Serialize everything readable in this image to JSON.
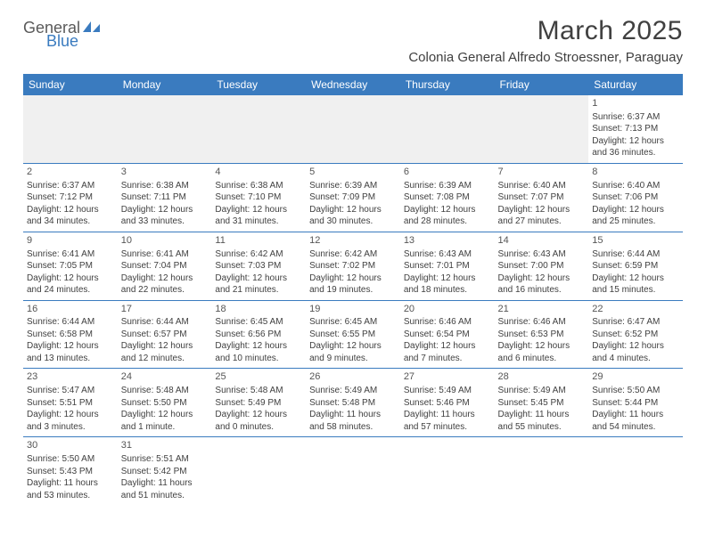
{
  "logo": {
    "text_top": "General",
    "text_bottom": "Blue",
    "shape_color": "#3a7bbf"
  },
  "header": {
    "month_title": "March 2025",
    "location": "Colonia General Alfredo Stroessner, Paraguay"
  },
  "calendar": {
    "day_headers": [
      "Sunday",
      "Monday",
      "Tuesday",
      "Wednesday",
      "Thursday",
      "Friday",
      "Saturday"
    ],
    "header_bg": "#3a7bbf",
    "header_fg": "#ffffff",
    "border_color": "#3a7bbf",
    "blank_bg": "#f0f0f0",
    "text_color": "#404040",
    "font_size_cell": 10,
    "font_size_daynum": 11,
    "weeks": [
      [
        null,
        null,
        null,
        null,
        null,
        null,
        {
          "n": "1",
          "sunrise": "Sunrise: 6:37 AM",
          "sunset": "Sunset: 7:13 PM",
          "daylight": "Daylight: 12 hours and 36 minutes."
        }
      ],
      [
        {
          "n": "2",
          "sunrise": "Sunrise: 6:37 AM",
          "sunset": "Sunset: 7:12 PM",
          "daylight": "Daylight: 12 hours and 34 minutes."
        },
        {
          "n": "3",
          "sunrise": "Sunrise: 6:38 AM",
          "sunset": "Sunset: 7:11 PM",
          "daylight": "Daylight: 12 hours and 33 minutes."
        },
        {
          "n": "4",
          "sunrise": "Sunrise: 6:38 AM",
          "sunset": "Sunset: 7:10 PM",
          "daylight": "Daylight: 12 hours and 31 minutes."
        },
        {
          "n": "5",
          "sunrise": "Sunrise: 6:39 AM",
          "sunset": "Sunset: 7:09 PM",
          "daylight": "Daylight: 12 hours and 30 minutes."
        },
        {
          "n": "6",
          "sunrise": "Sunrise: 6:39 AM",
          "sunset": "Sunset: 7:08 PM",
          "daylight": "Daylight: 12 hours and 28 minutes."
        },
        {
          "n": "7",
          "sunrise": "Sunrise: 6:40 AM",
          "sunset": "Sunset: 7:07 PM",
          "daylight": "Daylight: 12 hours and 27 minutes."
        },
        {
          "n": "8",
          "sunrise": "Sunrise: 6:40 AM",
          "sunset": "Sunset: 7:06 PM",
          "daylight": "Daylight: 12 hours and 25 minutes."
        }
      ],
      [
        {
          "n": "9",
          "sunrise": "Sunrise: 6:41 AM",
          "sunset": "Sunset: 7:05 PM",
          "daylight": "Daylight: 12 hours and 24 minutes."
        },
        {
          "n": "10",
          "sunrise": "Sunrise: 6:41 AM",
          "sunset": "Sunset: 7:04 PM",
          "daylight": "Daylight: 12 hours and 22 minutes."
        },
        {
          "n": "11",
          "sunrise": "Sunrise: 6:42 AM",
          "sunset": "Sunset: 7:03 PM",
          "daylight": "Daylight: 12 hours and 21 minutes."
        },
        {
          "n": "12",
          "sunrise": "Sunrise: 6:42 AM",
          "sunset": "Sunset: 7:02 PM",
          "daylight": "Daylight: 12 hours and 19 minutes."
        },
        {
          "n": "13",
          "sunrise": "Sunrise: 6:43 AM",
          "sunset": "Sunset: 7:01 PM",
          "daylight": "Daylight: 12 hours and 18 minutes."
        },
        {
          "n": "14",
          "sunrise": "Sunrise: 6:43 AM",
          "sunset": "Sunset: 7:00 PM",
          "daylight": "Daylight: 12 hours and 16 minutes."
        },
        {
          "n": "15",
          "sunrise": "Sunrise: 6:44 AM",
          "sunset": "Sunset: 6:59 PM",
          "daylight": "Daylight: 12 hours and 15 minutes."
        }
      ],
      [
        {
          "n": "16",
          "sunrise": "Sunrise: 6:44 AM",
          "sunset": "Sunset: 6:58 PM",
          "daylight": "Daylight: 12 hours and 13 minutes."
        },
        {
          "n": "17",
          "sunrise": "Sunrise: 6:44 AM",
          "sunset": "Sunset: 6:57 PM",
          "daylight": "Daylight: 12 hours and 12 minutes."
        },
        {
          "n": "18",
          "sunrise": "Sunrise: 6:45 AM",
          "sunset": "Sunset: 6:56 PM",
          "daylight": "Daylight: 12 hours and 10 minutes."
        },
        {
          "n": "19",
          "sunrise": "Sunrise: 6:45 AM",
          "sunset": "Sunset: 6:55 PM",
          "daylight": "Daylight: 12 hours and 9 minutes."
        },
        {
          "n": "20",
          "sunrise": "Sunrise: 6:46 AM",
          "sunset": "Sunset: 6:54 PM",
          "daylight": "Daylight: 12 hours and 7 minutes."
        },
        {
          "n": "21",
          "sunrise": "Sunrise: 6:46 AM",
          "sunset": "Sunset: 6:53 PM",
          "daylight": "Daylight: 12 hours and 6 minutes."
        },
        {
          "n": "22",
          "sunrise": "Sunrise: 6:47 AM",
          "sunset": "Sunset: 6:52 PM",
          "daylight": "Daylight: 12 hours and 4 minutes."
        }
      ],
      [
        {
          "n": "23",
          "sunrise": "Sunrise: 5:47 AM",
          "sunset": "Sunset: 5:51 PM",
          "daylight": "Daylight: 12 hours and 3 minutes."
        },
        {
          "n": "24",
          "sunrise": "Sunrise: 5:48 AM",
          "sunset": "Sunset: 5:50 PM",
          "daylight": "Daylight: 12 hours and 1 minute."
        },
        {
          "n": "25",
          "sunrise": "Sunrise: 5:48 AM",
          "sunset": "Sunset: 5:49 PM",
          "daylight": "Daylight: 12 hours and 0 minutes."
        },
        {
          "n": "26",
          "sunrise": "Sunrise: 5:49 AM",
          "sunset": "Sunset: 5:48 PM",
          "daylight": "Daylight: 11 hours and 58 minutes."
        },
        {
          "n": "27",
          "sunrise": "Sunrise: 5:49 AM",
          "sunset": "Sunset: 5:46 PM",
          "daylight": "Daylight: 11 hours and 57 minutes."
        },
        {
          "n": "28",
          "sunrise": "Sunrise: 5:49 AM",
          "sunset": "Sunset: 5:45 PM",
          "daylight": "Daylight: 11 hours and 55 minutes."
        },
        {
          "n": "29",
          "sunrise": "Sunrise: 5:50 AM",
          "sunset": "Sunset: 5:44 PM",
          "daylight": "Daylight: 11 hours and 54 minutes."
        }
      ],
      [
        {
          "n": "30",
          "sunrise": "Sunrise: 5:50 AM",
          "sunset": "Sunset: 5:43 PM",
          "daylight": "Daylight: 11 hours and 53 minutes."
        },
        {
          "n": "31",
          "sunrise": "Sunrise: 5:51 AM",
          "sunset": "Sunset: 5:42 PM",
          "daylight": "Daylight: 11 hours and 51 minutes."
        },
        null,
        null,
        null,
        null,
        null
      ]
    ]
  }
}
